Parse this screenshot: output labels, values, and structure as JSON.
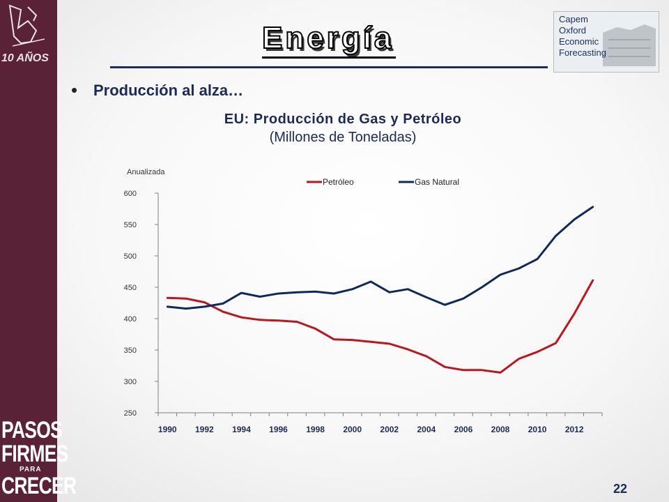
{
  "slide": {
    "title": "Energía",
    "bullet": "Producción al alza…",
    "page_number": "22",
    "colors": {
      "sidebar": "#5a2237",
      "title_rule": "#1f2a5e",
      "heading_text": "#1c2a57"
    }
  },
  "logos": {
    "top_left_text": "10 AÑOS",
    "bottom_left": [
      "PASOS",
      "FIRMES",
      "PARA",
      "CRECER"
    ],
    "top_right": [
      "Capem",
      "Oxford",
      "Economic",
      "Forecasting"
    ]
  },
  "chart_data": {
    "type": "line",
    "title": "EU: Producción de Gas y Petróleo",
    "subtitle": "(Millones de Toneladas)",
    "annotation": "Anualizada",
    "x": [
      1990,
      1991,
      1992,
      1993,
      1994,
      1995,
      1996,
      1997,
      1998,
      1999,
      2000,
      2001,
      2002,
      2003,
      2004,
      2005,
      2006,
      2007,
      2008,
      2009,
      2010,
      2011,
      2012,
      2013
    ],
    "x_tick_labels": [
      "1990",
      "1992",
      "1994",
      "1996",
      "1998",
      "2000",
      "2002",
      "2004",
      "2006",
      "2008",
      "2010",
      "2012"
    ],
    "ylim": [
      250,
      600
    ],
    "y_ticks": [
      250,
      300,
      350,
      400,
      450,
      500,
      550,
      600
    ],
    "grid": false,
    "legend_position": "top-right",
    "series": [
      {
        "name": "Petróleo",
        "color": "#c0141c",
        "values": [
          433,
          432,
          426,
          411,
          402,
          398,
          397,
          395,
          384,
          367,
          366,
          363,
          360,
          351,
          340,
          323,
          318,
          318,
          314,
          336,
          347,
          361,
          408,
          461
        ]
      },
      {
        "name": "Gas Natural",
        "color": "#0d2a5c",
        "values": [
          419,
          416,
          419,
          424,
          441,
          435,
          440,
          442,
          443,
          440,
          447,
          459,
          442,
          447,
          434,
          422,
          432,
          450,
          470,
          480,
          495,
          532,
          558,
          578
        ]
      }
    ]
  }
}
